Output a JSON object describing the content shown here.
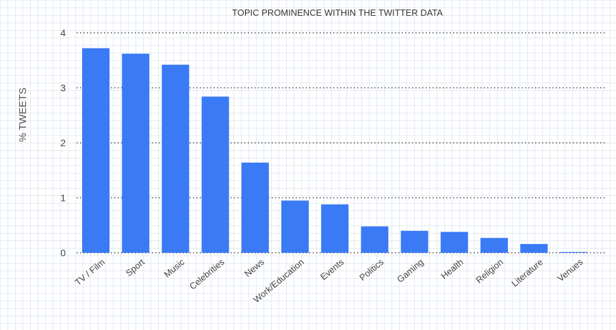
{
  "chart_data": {
    "type": "bar",
    "title": "TOPIC PROMINENCE WITHIN THE TWITTER DATA",
    "xlabel": "",
    "ylabel": "% TWEETS",
    "ylim": [
      0,
      4
    ],
    "yticks": [
      "0",
      "1",
      "2",
      "3",
      "4"
    ],
    "grid": "horizontal dotted",
    "bar_color": "#3a7af5",
    "categories": [
      "TV / Film",
      "Sport",
      "Music",
      "Celebrities",
      "News",
      "Work/Education",
      "Events",
      "Politics",
      "Gaming",
      "Health",
      "Religion",
      "Literature",
      "Venues"
    ],
    "values": [
      3.72,
      3.62,
      3.42,
      2.84,
      1.64,
      0.95,
      0.88,
      0.48,
      0.4,
      0.38,
      0.27,
      0.16,
      0.01
    ]
  }
}
